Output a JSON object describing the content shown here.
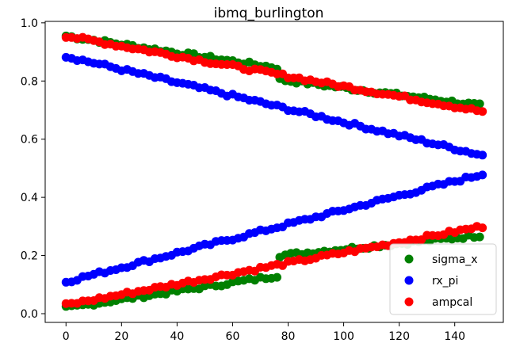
{
  "chart_data": {
    "type": "scatter",
    "title": "ibmq_burlington",
    "xlabel": "",
    "ylabel": "",
    "xlim": [
      -7.5,
      157.5
    ],
    "ylim": [
      -0.03,
      1.005
    ],
    "xticks": [
      0,
      20,
      40,
      60,
      80,
      100,
      120,
      140
    ],
    "yticks": [
      0.0,
      0.2,
      0.4,
      0.6,
      0.8,
      1.0
    ],
    "ytick_labels": [
      "0.0",
      "0.2",
      "0.4",
      "0.6",
      "0.8",
      "1.0"
    ],
    "grid": false,
    "legend_position": "lower-right",
    "series": [
      {
        "name": "sigma_x",
        "color": "#008000",
        "segments": [
          {
            "x_range": [
              0,
              76
            ],
            "start": 0.955,
            "end": 0.845
          },
          {
            "x_range": [
              77,
              150
            ],
            "start": 0.805,
            "end": 0.715
          },
          {
            "x_range": [
              0,
              76
            ],
            "start": 0.02,
            "end": 0.13
          },
          {
            "x_range": [
              77,
              150
            ],
            "start": 0.2,
            "end": 0.27
          }
        ]
      },
      {
        "name": "rx_pi",
        "color": "#0000ff",
        "segments": [
          {
            "x_range": [
              0,
              150
            ],
            "start": 0.885,
            "end": 0.545
          },
          {
            "x_range": [
              0,
              150
            ],
            "start": 0.11,
            "end": 0.48
          }
        ]
      },
      {
        "name": "ampcal",
        "color": "#ff0000",
        "segments": [
          {
            "x_range": [
              0,
              150
            ],
            "start": 0.955,
            "end": 0.695
          },
          {
            "x_range": [
              0,
              150
            ],
            "start": 0.03,
            "end": 0.3
          }
        ]
      }
    ]
  }
}
